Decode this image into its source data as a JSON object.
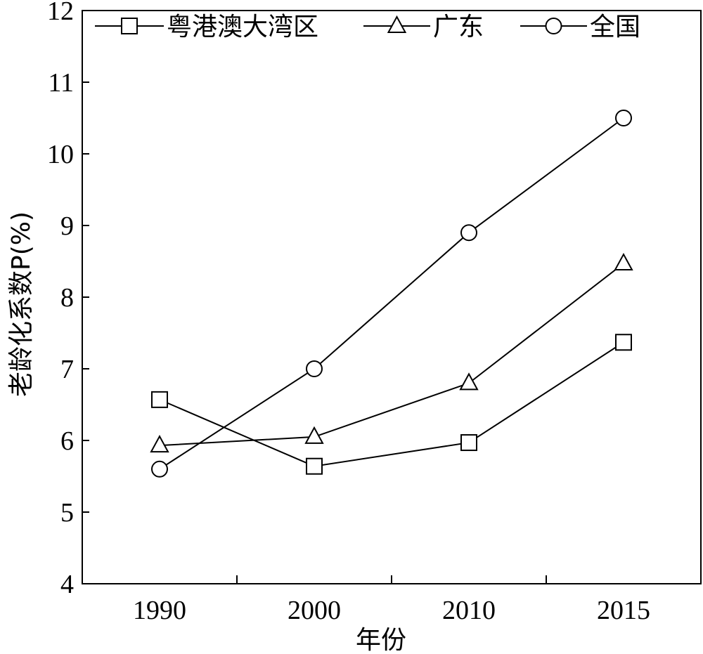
{
  "chart_data": {
    "type": "line",
    "title": "",
    "xlabel": "年份",
    "ylabel": "老龄化系数P(%)",
    "categories": [
      "1990",
      "2000",
      "2010",
      "2015"
    ],
    "ylim": [
      4,
      12
    ],
    "yticks": [
      "4",
      "5",
      "6",
      "7",
      "8",
      "9",
      "10",
      "11",
      "12"
    ],
    "grid": false,
    "legend_position": "top-left",
    "series": [
      {
        "name": "粤港澳大湾区",
        "marker": "square",
        "values": [
          6.57,
          5.64,
          5.97,
          7.37
        ]
      },
      {
        "name": "广东",
        "marker": "triangle",
        "values": [
          5.93,
          6.05,
          6.8,
          8.47
        ]
      },
      {
        "name": "全国",
        "marker": "circle",
        "values": [
          5.6,
          7.0,
          8.9,
          10.5
        ]
      }
    ]
  }
}
